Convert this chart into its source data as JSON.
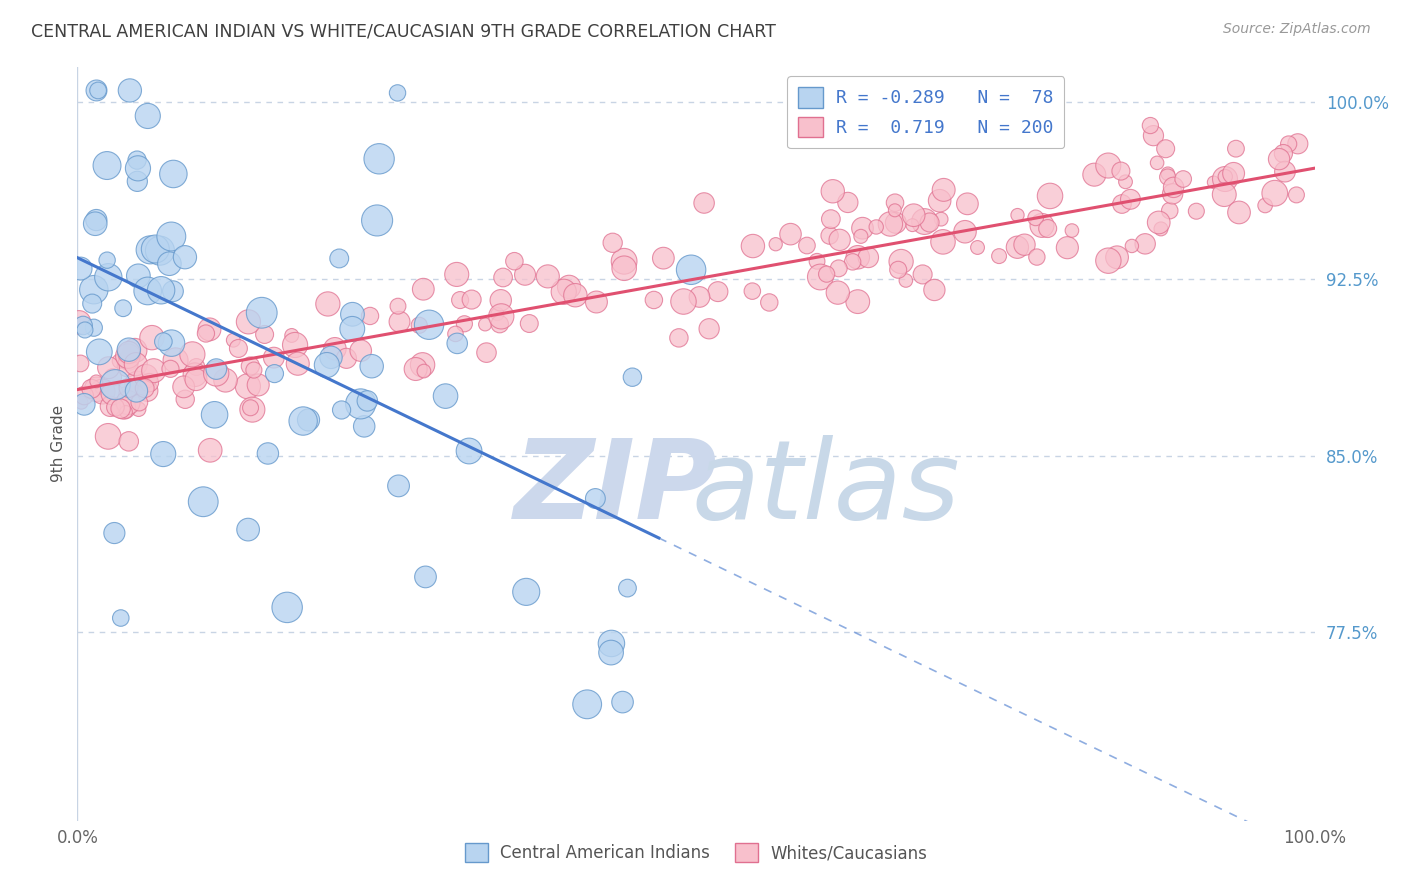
{
  "title": "CENTRAL AMERICAN INDIAN VS WHITE/CAUCASIAN 9TH GRADE CORRELATION CHART",
  "source": "Source: ZipAtlas.com",
  "ylabel": "9th Grade",
  "xlim": [
    0.0,
    1.0
  ],
  "ylim": [
    0.695,
    1.015
  ],
  "blue_R": -0.289,
  "blue_N": 78,
  "pink_R": 0.719,
  "pink_N": 200,
  "blue_line_color": "#4477cc",
  "pink_line_color": "#e05070",
  "blue_scatter_face": "#b8d4f0",
  "blue_scatter_edge": "#6699cc",
  "pink_scatter_face": "#f8c0cc",
  "pink_scatter_edge": "#e07090",
  "watermark_zip_color": "#ccd8ec",
  "watermark_atlas_color": "#c8d8e8",
  "background_color": "#ffffff",
  "grid_color": "#c8d4e4",
  "right_tick_color": "#5599cc",
  "title_color": "#404040",
  "blue_line_y0": 0.934,
  "blue_line_y_at_047": 0.815,
  "blue_line_y1": 0.695,
  "pink_line_y0": 0.878,
  "pink_line_y1": 0.972
}
